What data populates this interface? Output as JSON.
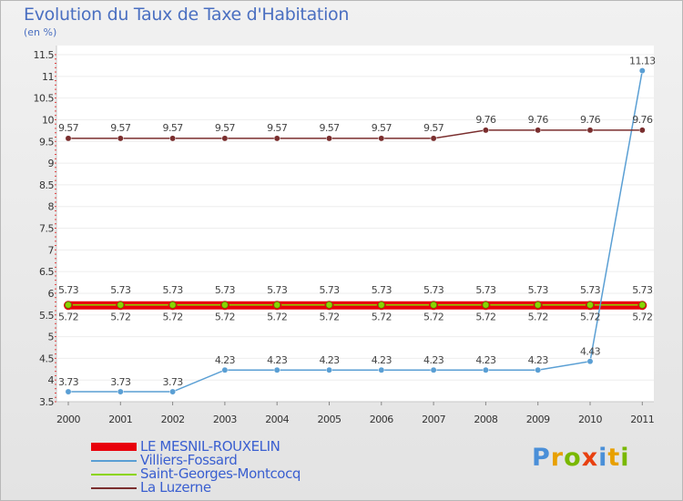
{
  "chart_data": {
    "type": "line",
    "title": "Evolution du Taux de Taxe d'Habitation",
    "subtitle": "(en %)",
    "categories": [
      "2000",
      "2001",
      "2002",
      "2003",
      "2004",
      "2005",
      "2006",
      "2007",
      "2008",
      "2009",
      "2010",
      "2011"
    ],
    "ylim": [
      3.5,
      11.5
    ],
    "yticks": [
      "3.5",
      "4",
      "4.5",
      "5",
      "5.5",
      "6",
      "6.5",
      "7",
      "7.5",
      "8",
      "8.5",
      "9",
      "9.5",
      "10",
      "10.5",
      "11",
      "11.5"
    ],
    "series": [
      {
        "name": "LE MESNIL-ROUXELIN",
        "color": "#e8000b",
        "values": [
          5.72,
          5.72,
          5.72,
          5.72,
          5.72,
          5.72,
          5.72,
          5.72,
          5.72,
          5.72,
          5.72,
          5.72
        ],
        "labels": [
          "5.72",
          "5.72",
          "5.72",
          "5.72",
          "5.72",
          "5.72",
          "5.72",
          "5.72",
          "5.72",
          "5.72",
          "5.72",
          "5.72"
        ]
      },
      {
        "name": "Villiers-Fossard",
        "color": "#5a9fd4",
        "values": [
          3.73,
          3.73,
          3.73,
          4.23,
          4.23,
          4.23,
          4.23,
          4.23,
          4.23,
          4.23,
          4.43,
          11.13
        ],
        "labels": [
          "3.73",
          "3.73",
          "3.73",
          "4.23",
          "4.23",
          "4.23",
          "4.23",
          "4.23",
          "4.23",
          "4.23",
          "4.43",
          "11.13"
        ]
      },
      {
        "name": "Saint-Georges-Montcocq",
        "color": "#8bd400",
        "values": [
          5.73,
          5.73,
          5.73,
          5.73,
          5.73,
          5.73,
          5.73,
          5.73,
          5.73,
          5.73,
          5.73,
          5.73
        ],
        "labels": [
          "5.73",
          "5.73",
          "5.73",
          "5.73",
          "5.73",
          "5.73",
          "5.73",
          "5.73",
          "5.73",
          "5.73",
          "5.73",
          "5.73"
        ]
      },
      {
        "name": "La Luzerne",
        "color": "#7a2e2e",
        "values": [
          9.57,
          9.57,
          9.57,
          9.57,
          9.57,
          9.57,
          9.57,
          9.57,
          9.76,
          9.76,
          9.76,
          9.76
        ],
        "labels": [
          "9.57",
          "9.57",
          "9.57",
          "9.57",
          "9.57",
          "9.57",
          "9.57",
          "9.57",
          "9.76",
          "9.76",
          "9.76",
          "9.76"
        ]
      }
    ]
  },
  "logo": {
    "text": "Proxiti",
    "letters": [
      "P",
      "r",
      "o",
      "x",
      "i",
      "t",
      "i"
    ],
    "colors": [
      "#4a8fd8",
      "#e8a000",
      "#79b800",
      "#e84010",
      "#4a8fd8",
      "#e8a000",
      "#79b800"
    ]
  }
}
